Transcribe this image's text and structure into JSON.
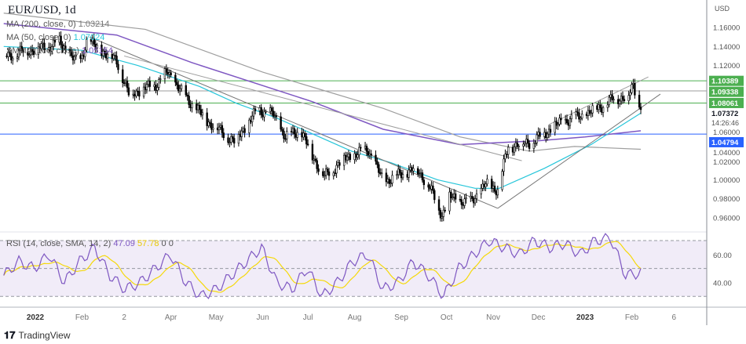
{
  "header": {
    "symbol_title": "EUR/USD, 1d"
  },
  "indicators": [
    {
      "label": "MA (200, close, 0)",
      "value": "1.03214",
      "color": "#9e9e9e"
    },
    {
      "label": "MA (50, close, 0)",
      "value": "1.07024",
      "color": "#26c6da"
    },
    {
      "label": "SMMA (100, close)",
      "value": "1.05154",
      "color": "#7e57c2"
    }
  ],
  "rsi_legend": {
    "label": "RSI (14, close, SMA, 14, 2)",
    "rsi": "47.09",
    "sma": "57.78",
    "extra1": "0",
    "extra2": "0",
    "rsi_color": "#7e57c2",
    "sma_color": "#f5d90a"
  },
  "footer": {
    "brand": "TradingView"
  },
  "chart_data": {
    "type": "candlestick",
    "currency_label": "USD",
    "y_ticks": [
      "1.16000",
      "1.14000",
      "1.12000",
      "1.06000",
      "1.04000",
      "1.02000",
      "1.00000",
      "0.98000",
      "0.96000"
    ],
    "ylim": [
      0.955,
      1.19
    ],
    "x_ticks": [
      "2022",
      "Feb",
      "2",
      "Apr",
      "May",
      "Jun",
      "Jul",
      "Aug",
      "Sep",
      "Oct",
      "Nov",
      "Dec",
      "2023",
      "Feb",
      "6"
    ],
    "x_tick_dates": [
      "2022-01-01",
      "2022-02-01",
      "2022-03-01",
      "2022-04-01",
      "2022-05-01",
      "2022-06-01",
      "2022-07-01",
      "2022-08-01",
      "2022-09-01",
      "2022-10-01",
      "2022-11-01",
      "2022-12-01",
      "2023-01-01",
      "2023-02-01",
      "2023-03-01"
    ],
    "last_price": {
      "value": "1.07372",
      "countdown": "14:26:46"
    },
    "price_levels": [
      {
        "value": 1.10389,
        "label": "1.10389",
        "color": "#4caf50"
      },
      {
        "value": 1.09338,
        "label": "1.09338",
        "color": "#4caf50",
        "line_color": "#9e9e9e"
      },
      {
        "value": 1.08061,
        "label": "1.08061",
        "color": "#4caf50"
      },
      {
        "value": 1.04794,
        "label": "1.04794",
        "color": "#2962ff"
      }
    ],
    "closes": [
      [
        "2021-12-11",
        1.13
      ],
      [
        "2022-01-09",
        1.14
      ],
      [
        "2022-01-17",
        1.145
      ],
      [
        "2022-01-30",
        1.12
      ],
      [
        "2022-02-04",
        1.146
      ],
      [
        "2022-02-24",
        1.125
      ],
      [
        "2022-03-04",
        1.09
      ],
      [
        "2022-03-22",
        1.1
      ],
      [
        "2022-03-30",
        1.113
      ],
      [
        "2022-04-09",
        1.09
      ],
      [
        "2022-04-25",
        1.062
      ],
      [
        "2022-05-13",
        1.04
      ],
      [
        "2022-05-29",
        1.074
      ],
      [
        "2022-06-08",
        1.068
      ],
      [
        "2022-06-16",
        1.045
      ],
      [
        "2022-06-26",
        1.052
      ],
      [
        "2022-07-04",
        1.025
      ],
      [
        "2022-07-12",
        1.003
      ],
      [
        "2022-07-25",
        1.022
      ],
      [
        "2022-08-10",
        1.032
      ],
      [
        "2022-08-20",
        0.998
      ],
      [
        "2022-09-10",
        1.012
      ],
      [
        "2022-09-18",
        0.998
      ],
      [
        "2022-09-28",
        0.963
      ],
      [
        "2022-10-03",
        0.982
      ],
      [
        "2022-10-16",
        0.975
      ],
      [
        "2022-10-27",
        0.995
      ],
      [
        "2022-11-04",
        0.99
      ],
      [
        "2022-11-11",
        1.035
      ],
      [
        "2022-11-27",
        1.04
      ],
      [
        "2022-12-08",
        1.052
      ],
      [
        "2022-12-18",
        1.062
      ],
      [
        "2023-01-01",
        1.068
      ],
      [
        "2023-01-09",
        1.075
      ],
      [
        "2023-01-20",
        1.085
      ],
      [
        "2023-01-30",
        1.088
      ],
      [
        "2023-02-02",
        1.099
      ],
      [
        "2023-02-07",
        1.0737
      ]
    ],
    "ma200": [
      [
        "2021-12-11",
        1.175
      ],
      [
        "2022-03-15",
        1.158
      ],
      [
        "2022-06-01",
        1.113
      ],
      [
        "2022-08-20",
        1.075
      ],
      [
        "2022-10-10",
        1.045
      ],
      [
        "2022-11-25",
        1.03
      ],
      [
        "2022-12-25",
        1.035
      ],
      [
        "2023-02-07",
        1.032
      ]
    ],
    "ma50": [
      [
        "2021-12-11",
        1.14
      ],
      [
        "2022-02-01",
        1.136
      ],
      [
        "2022-03-10",
        1.12
      ],
      [
        "2022-04-20",
        1.098
      ],
      [
        "2022-05-15",
        1.08
      ],
      [
        "2022-06-10",
        1.065
      ],
      [
        "2022-07-30",
        1.03
      ],
      [
        "2022-08-25",
        1.018
      ],
      [
        "2022-09-25",
        1.0
      ],
      [
        "2022-10-20",
        0.991
      ],
      [
        "2022-11-05",
        0.991
      ],
      [
        "2022-12-05",
        1.012
      ],
      [
        "2023-01-05",
        1.037
      ],
      [
        "2023-02-07",
        1.07
      ]
    ],
    "smma100": [
      [
        "2021-12-11",
        1.164
      ],
      [
        "2022-02-24",
        1.152
      ],
      [
        "2022-04-15",
        1.123
      ],
      [
        "2022-07-04",
        1.082
      ],
      [
        "2022-08-20",
        1.053
      ],
      [
        "2022-10-10",
        1.037
      ],
      [
        "2022-11-05",
        1.039
      ],
      [
        "2022-12-01",
        1.041
      ],
      [
        "2023-01-01",
        1.045
      ],
      [
        "2023-02-07",
        1.0515
      ]
    ],
    "trend_lines": [
      {
        "from": [
          "2022-02-06",
          1.15
        ],
        "to": [
          "2022-11-04",
          0.97
        ],
        "color": "#757575"
      },
      {
        "from": [
          "2022-03-01",
          1.13
        ],
        "to": [
          "2022-11-20",
          1.02
        ],
        "color": "#9e9e9e"
      },
      {
        "from": [
          "2022-11-04",
          0.97
        ],
        "to": [
          "2023-02-20",
          1.09
        ],
        "color": "#757575"
      },
      {
        "from": [
          "2022-12-08",
          1.058
        ],
        "to": [
          "2023-02-12",
          1.108
        ],
        "color": "#9e9e9e"
      }
    ],
    "rsi": {
      "levels": [
        70,
        50,
        30
      ],
      "y_ticks": [
        "60.00",
        "40.00"
      ],
      "ylim": [
        20,
        80
      ],
      "values": [
        45,
        55,
        50,
        60,
        40,
        55,
        65,
        45,
        35,
        40,
        50,
        60,
        40,
        30,
        35,
        45,
        55,
        65,
        40,
        35,
        50,
        30,
        40,
        55,
        60,
        35,
        40,
        55,
        45,
        30,
        50,
        60,
        70,
        65,
        60,
        70,
        65,
        68,
        60,
        70,
        72,
        45,
        47
      ]
    }
  }
}
